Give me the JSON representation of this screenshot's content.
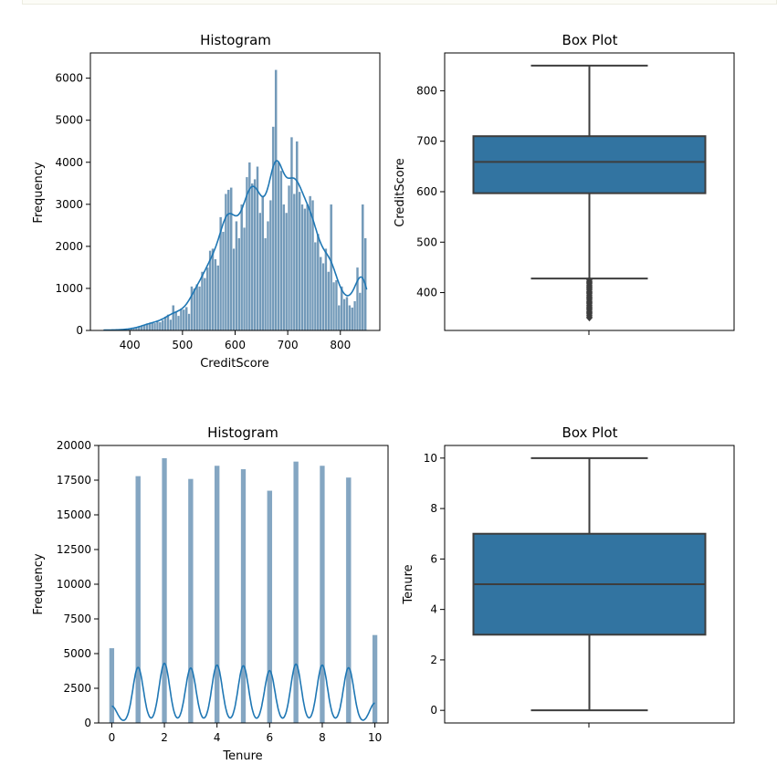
{
  "chart_data": [
    {
      "type": "bar",
      "subtype": "histogram",
      "title": "Histogram",
      "xlabel": "CreditScore",
      "ylabel": "Frequency",
      "xlim": [
        325,
        875
      ],
      "ylim": [
        0,
        6600
      ],
      "xticks": [
        400,
        500,
        600,
        700,
        800
      ],
      "yticks": [
        0,
        1000,
        2000,
        3000,
        4000,
        5000,
        6000
      ],
      "bar_color": "#5b88ad",
      "kde_color": "#1f77b4",
      "bin_width": 5,
      "bins_x": [
        350,
        355,
        360,
        365,
        370,
        375,
        380,
        385,
        390,
        395,
        400,
        405,
        410,
        415,
        420,
        425,
        430,
        435,
        440,
        445,
        450,
        455,
        460,
        465,
        470,
        475,
        480,
        485,
        490,
        495,
        500,
        505,
        510,
        515,
        520,
        525,
        530,
        535,
        540,
        545,
        550,
        555,
        560,
        565,
        570,
        575,
        580,
        585,
        590,
        595,
        600,
        605,
        610,
        615,
        620,
        625,
        630,
        635,
        640,
        645,
        650,
        655,
        660,
        665,
        670,
        675,
        680,
        685,
        690,
        695,
        700,
        705,
        710,
        715,
        720,
        725,
        730,
        735,
        740,
        745,
        750,
        755,
        760,
        765,
        770,
        775,
        780,
        785,
        790,
        795,
        800,
        805,
        810,
        815,
        820,
        825,
        830,
        835,
        840,
        845
      ],
      "bins_count": [
        20,
        10,
        10,
        15,
        10,
        15,
        10,
        20,
        25,
        30,
        40,
        50,
        60,
        80,
        100,
        130,
        160,
        180,
        200,
        180,
        220,
        200,
        250,
        330,
        380,
        260,
        600,
        450,
        350,
        520,
        500,
        560,
        400,
        1050,
        1000,
        1100,
        1050,
        1400,
        1250,
        1500,
        1900,
        1950,
        1700,
        1550,
        2700,
        2350,
        3250,
        3350,
        3400,
        1950,
        2600,
        2200,
        3000,
        2450,
        3650,
        4000,
        3500,
        3600,
        3900,
        2800,
        3200,
        2200,
        2600,
        3100,
        4850,
        6200,
        4000,
        3800,
        3000,
        2800,
        3450,
        4600,
        3250,
        4500,
        3300,
        3000,
        2900,
        3000,
        3200,
        3100,
        2100,
        2300,
        1750,
        1600,
        1950,
        1400,
        3000,
        1150,
        1200,
        600,
        1050,
        750,
        800,
        600,
        550,
        700,
        1500,
        900,
        3000,
        2200
      ]
    },
    {
      "type": "box",
      "title": "Box Plot",
      "xlabel": "",
      "ylabel": "CreditScore",
      "ylim": [
        325,
        875
      ],
      "yticks": [
        400,
        500,
        600,
        700,
        800
      ],
      "q1": 597,
      "median": 659,
      "q3": 710,
      "whisker_low": 428,
      "whisker_high": 850,
      "outliers": [
        425,
        422,
        420,
        418,
        415,
        412,
        410,
        408,
        405,
        402,
        400,
        398,
        395,
        392,
        390,
        388,
        385,
        382,
        380,
        378,
        375,
        372,
        370,
        368,
        365,
        362,
        360,
        358,
        355,
        352,
        350
      ],
      "box_color": "#3274a1"
    },
    {
      "type": "bar",
      "subtype": "histogram",
      "title": "Histogram",
      "xlabel": "Tenure",
      "ylabel": "Frequency",
      "xlim": [
        -0.5,
        10.5
      ],
      "ylim": [
        0,
        20000
      ],
      "xticks": [
        0,
        2,
        4,
        6,
        8,
        10
      ],
      "yticks": [
        0,
        2500,
        5000,
        7500,
        10000,
        12500,
        15000,
        17500,
        20000
      ],
      "bar_color": "#5b88ad",
      "kde_color": "#1f77b4",
      "categories": [
        0,
        1,
        2,
        3,
        4,
        5,
        6,
        7,
        8,
        9,
        10
      ],
      "values": [
        5400,
        17800,
        19100,
        17600,
        18550,
        18300,
        16750,
        18850,
        18550,
        17700,
        6350
      ]
    },
    {
      "type": "box",
      "title": "Box Plot",
      "xlabel": "",
      "ylabel": "Tenure",
      "ylim": [
        -0.5,
        10.5
      ],
      "yticks": [
        0,
        2,
        4,
        6,
        8,
        10
      ],
      "q1": 3,
      "median": 5,
      "q3": 7,
      "whisker_low": 0,
      "whisker_high": 10,
      "outliers": [],
      "box_color": "#3274a1"
    }
  ]
}
